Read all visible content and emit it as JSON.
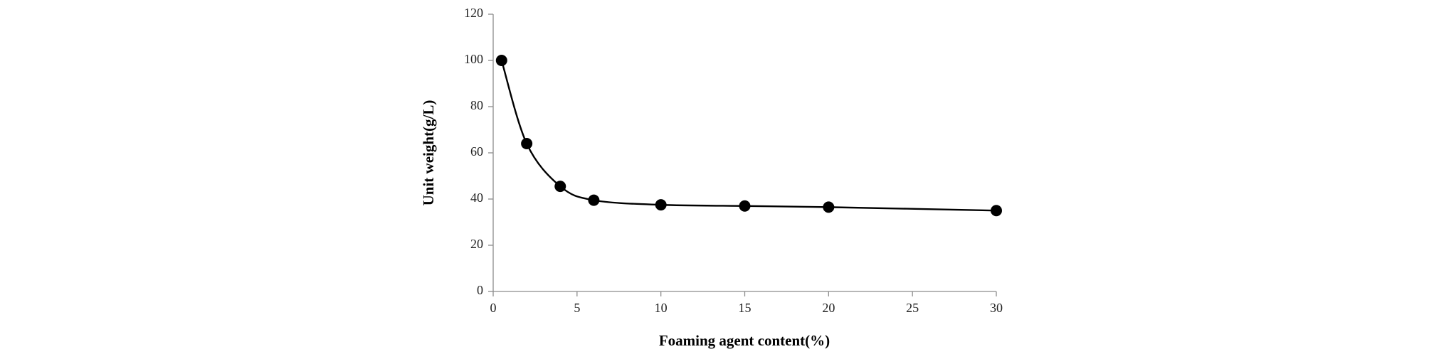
{
  "chart_data": {
    "type": "scatter-smooth",
    "x_label": "Foaming agent content(%)",
    "y_label": "Unit weight(g/L)",
    "x": [
      0.5,
      2,
      4,
      6,
      10,
      15,
      20,
      30
    ],
    "series": [
      {
        "color": "#000000",
        "values": [
          100,
          64,
          45.5,
          39.5,
          37.5,
          37,
          36.5,
          35
        ]
      }
    ],
    "xlim": [
      0,
      30
    ],
    "xticks": [
      0,
      5,
      10,
      15,
      20,
      25,
      30
    ],
    "ylim": [
      0,
      120
    ],
    "yticks": [
      0,
      20,
      40,
      60,
      80,
      100,
      120
    ],
    "grid": false
  }
}
